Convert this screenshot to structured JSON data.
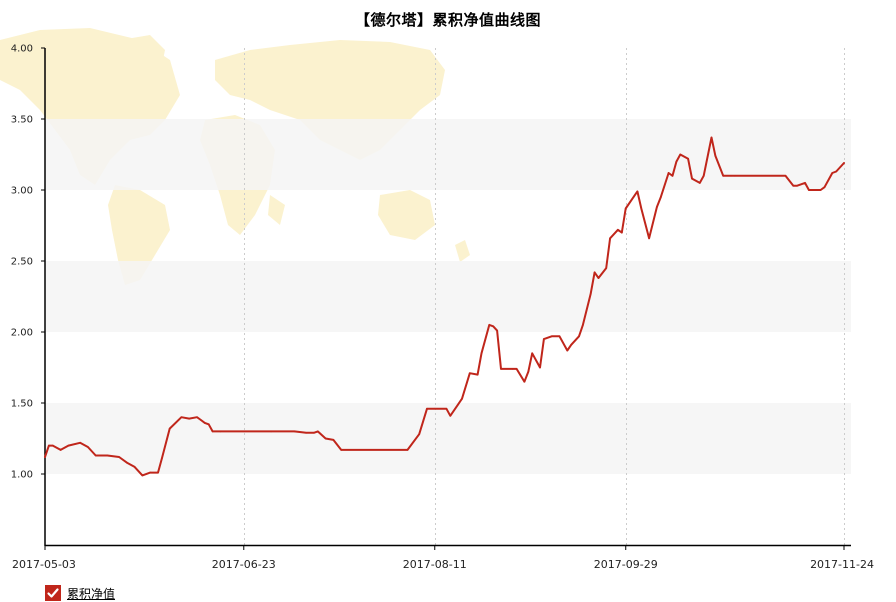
{
  "title": "【德尔塔】累积净值曲线图",
  "legend": {
    "label": "累积净值",
    "checked": true
  },
  "colors": {
    "line": "#c0261b",
    "band": "#f5f5f5",
    "map": "#fbf2cf",
    "axis": "#000000",
    "vgrid": "#cccccc"
  },
  "chart_data": {
    "type": "line",
    "title": "【德尔塔】累积净值曲线图",
    "xlabel": "",
    "ylabel": "",
    "ylim": [
      0.5,
      4.0
    ],
    "yticks": [
      "1.00",
      "1.50",
      "2.00",
      "2.50",
      "3.00",
      "3.50",
      "4.00"
    ],
    "xticks": [
      "2017-05-03",
      "2017-06-23",
      "2017-08-11",
      "2017-09-29",
      "2017-11-24"
    ],
    "xlim": [
      "2017-05-03",
      "2017-11-24"
    ],
    "grid": {
      "horizontal_bands": true,
      "vertical_dashed": true
    },
    "legend_position": "bottom-left",
    "series": [
      {
        "name": "累积净值",
        "x": [
          "2017-05-03",
          "2017-05-04",
          "2017-05-05",
          "2017-05-07",
          "2017-05-09",
          "2017-05-12",
          "2017-05-14",
          "2017-05-16",
          "2017-05-19",
          "2017-05-22",
          "2017-05-24",
          "2017-05-26",
          "2017-05-28",
          "2017-05-30",
          "2017-06-01",
          "2017-06-02",
          "2017-06-04",
          "2017-06-07",
          "2017-06-09",
          "2017-06-11",
          "2017-06-12",
          "2017-06-13",
          "2017-06-14",
          "2017-06-15",
          "2017-06-17",
          "2017-06-30",
          "2017-07-06",
          "2017-07-09",
          "2017-07-11",
          "2017-07-12",
          "2017-07-14",
          "2017-07-16",
          "2017-07-18",
          "2017-08-04",
          "2017-08-07",
          "2017-08-09",
          "2017-08-11",
          "2017-08-14",
          "2017-08-15",
          "2017-08-17",
          "2017-08-18",
          "2017-08-20",
          "2017-08-22",
          "2017-08-23",
          "2017-08-25",
          "2017-08-26",
          "2017-08-27",
          "2017-08-28",
          "2017-08-31",
          "2017-09-01",
          "2017-09-03",
          "2017-09-04",
          "2017-09-05",
          "2017-09-07",
          "2017-09-08",
          "2017-09-10",
          "2017-09-12",
          "2017-09-14",
          "2017-09-15",
          "2017-09-17",
          "2017-09-18",
          "2017-09-20",
          "2017-09-21",
          "2017-09-22",
          "2017-09-24",
          "2017-09-25",
          "2017-09-27",
          "2017-09-28",
          "2017-09-29",
          "2017-10-01",
          "2017-10-02",
          "2017-10-03",
          "2017-10-05",
          "2017-10-07",
          "2017-10-08",
          "2017-10-10",
          "2017-10-11",
          "2017-10-12",
          "2017-10-13",
          "2017-10-15",
          "2017-10-16",
          "2017-10-18",
          "2017-10-19",
          "2017-10-21",
          "2017-10-22",
          "2017-10-24",
          "2017-10-26",
          "2017-10-27",
          "2017-11-09",
          "2017-11-11",
          "2017-11-12",
          "2017-11-14",
          "2017-11-15",
          "2017-11-18",
          "2017-11-19",
          "2017-11-21",
          "2017-11-22",
          "2017-11-24"
        ],
        "values": [
          1.12,
          1.2,
          1.2,
          1.17,
          1.2,
          1.22,
          1.19,
          1.13,
          1.13,
          1.12,
          1.08,
          1.05,
          0.99,
          1.01,
          1.01,
          1.11,
          1.32,
          1.4,
          1.39,
          1.4,
          1.38,
          1.36,
          1.35,
          1.3,
          1.3,
          1.3,
          1.3,
          1.29,
          1.29,
          1.3,
          1.25,
          1.24,
          1.17,
          1.17,
          1.28,
          1.46,
          1.46,
          1.46,
          1.41,
          1.49,
          1.53,
          1.71,
          1.7,
          1.85,
          2.05,
          2.04,
          2.01,
          1.74,
          1.74,
          1.74,
          1.65,
          1.72,
          1.85,
          1.75,
          1.95,
          1.97,
          1.97,
          1.87,
          1.91,
          1.97,
          2.05,
          2.27,
          2.42,
          2.38,
          2.45,
          2.66,
          2.72,
          2.7,
          2.87,
          2.95,
          2.99,
          2.87,
          2.66,
          2.88,
          2.95,
          3.12,
          3.1,
          3.2,
          3.25,
          3.22,
          3.08,
          3.05,
          3.1,
          3.37,
          3.24,
          3.1,
          3.1,
          3.1,
          3.1,
          3.03,
          3.03,
          3.05,
          3.0,
          3.0,
          3.02,
          3.12,
          3.13,
          3.19
        ]
      }
    ]
  }
}
